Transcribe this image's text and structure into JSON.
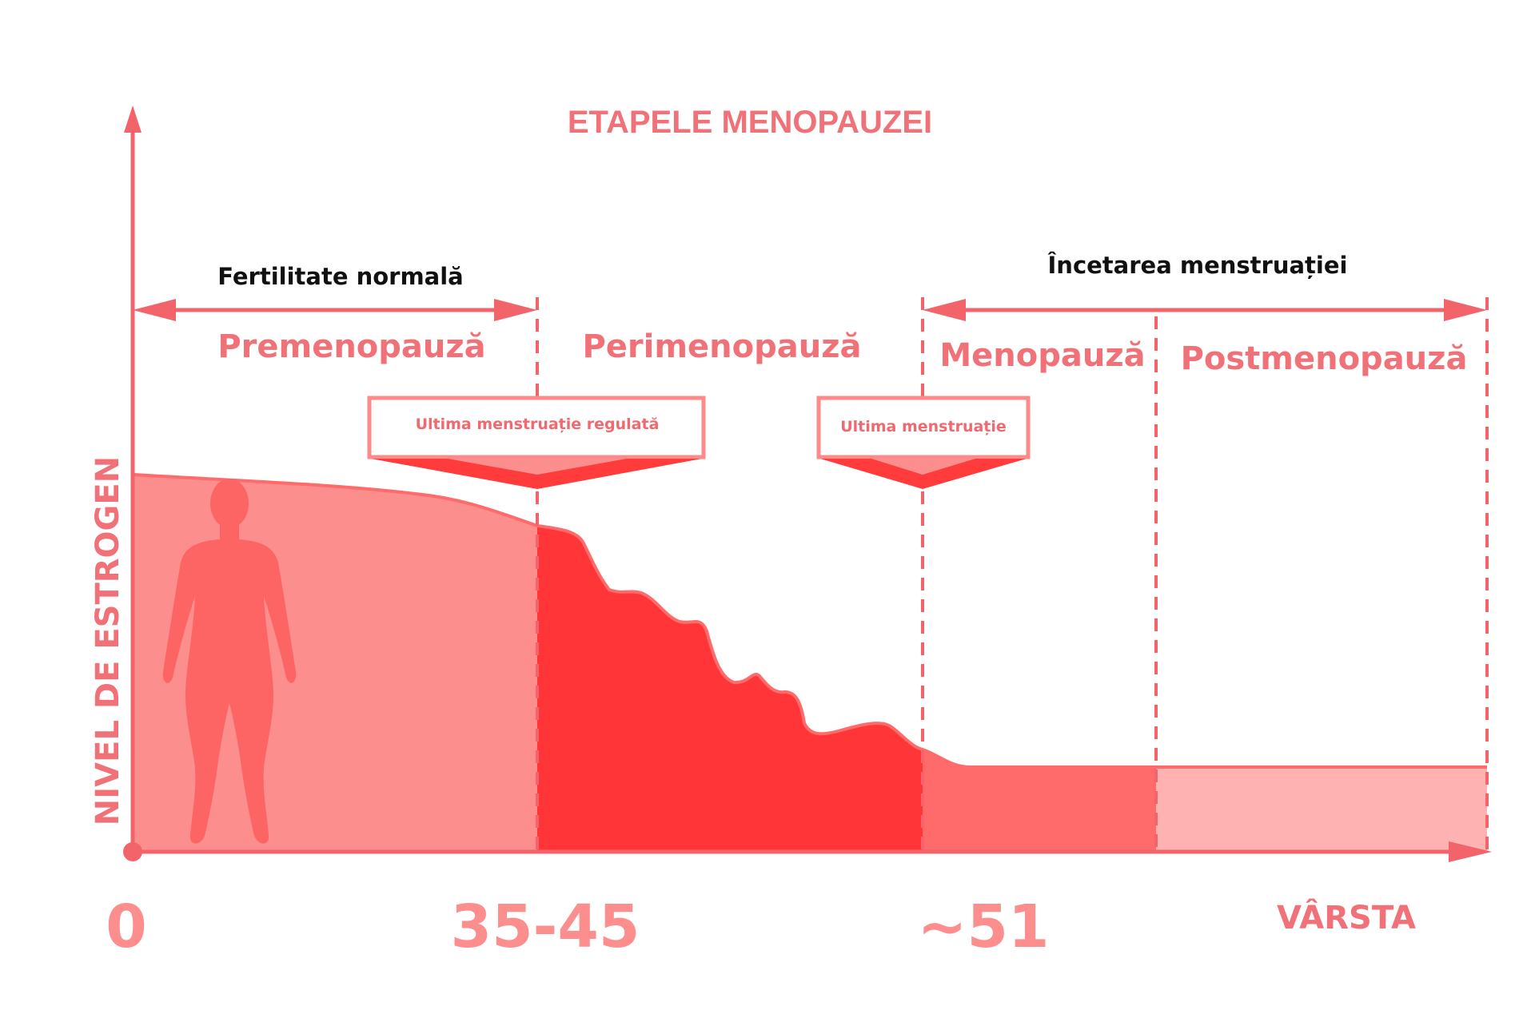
{
  "colors": {
    "axis": "#f2636a",
    "text_pink": "#f07178",
    "text_dark": "#111111",
    "premenopause_fill": "#fd8e8e",
    "perimenopause_fill": "#ff3537",
    "menopause_fill": "#ff6a6a",
    "postmenopause_fill": "#feb2b2",
    "silhouette": "#fd6464",
    "callout_text": "#ee6a6f"
  },
  "icons": {
    "figure": "female-silhouette-icon"
  },
  "chart_data": {
    "type": "area",
    "title": "ETAPELE MENOPAUZEI",
    "xlabel": "VÂRSTA",
    "ylabel": "NIVEL DE ESTROGEN",
    "x_ticks": [
      "0",
      "35-45",
      "~51"
    ],
    "phases": [
      {
        "name": "Premenopauză",
        "color": "#fd8e8e"
      },
      {
        "name": "Perimenopauză",
        "color": "#ff3537"
      },
      {
        "name": "Menopauză",
        "color": "#ff6a6a"
      },
      {
        "name": "Postmenopauză",
        "color": "#feb2b2"
      }
    ],
    "periods": [
      {
        "label": "Fertilitate normală",
        "from_phase": "Premenopauză",
        "to_phase": "Premenopauză"
      },
      {
        "label": "Încetarea menstruației",
        "from_phase": "Menopauză",
        "to_phase": "Postmenopauză"
      }
    ],
    "callouts": [
      {
        "label": "Ultima menstruație regulată",
        "at_boundary": "Premenopauză/Perimenopauză"
      },
      {
        "label": "Ultima menstruație",
        "at_boundary": "Perimenopauză/Menopauză"
      }
    ],
    "estrogen_relative": [
      {
        "stage_progress": 0.0,
        "level": 1.0
      },
      {
        "stage_progress": 1.0,
        "level": 0.87,
        "note_phase": "Premenopauză"
      },
      {
        "stage_progress": 2.0,
        "level": 0.29,
        "note_phase": "Perimenopauză"
      },
      {
        "stage_progress": 3.0,
        "level": 0.23,
        "note_phase": "Menopauză"
      },
      {
        "stage_progress": 4.0,
        "level": 0.23,
        "note_phase": "Postmenopauză"
      }
    ],
    "grid": false,
    "legend": "none"
  }
}
